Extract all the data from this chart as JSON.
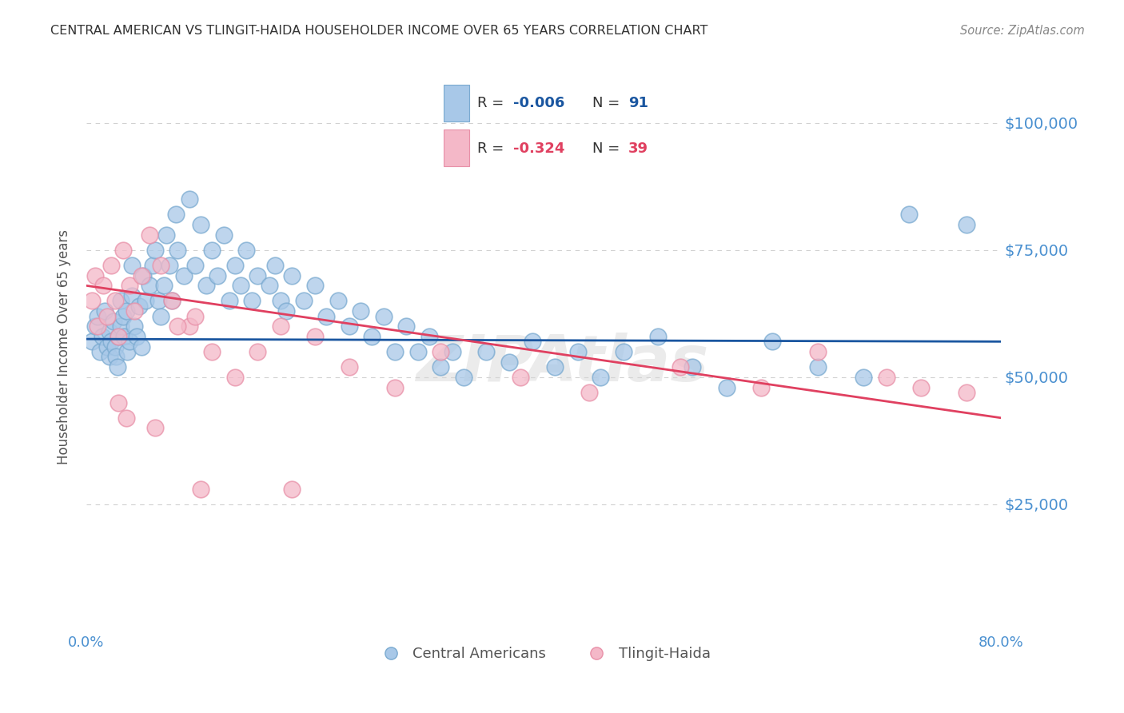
{
  "title": "CENTRAL AMERICAN VS TLINGIT-HAIDA HOUSEHOLDER INCOME OVER 65 YEARS CORRELATION CHART",
  "source": "Source: ZipAtlas.com",
  "ylabel": "Householder Income Over 65 years",
  "ytick_labels": [
    "$25,000",
    "$50,000",
    "$75,000",
    "$100,000"
  ],
  "ytick_values": [
    25000,
    50000,
    75000,
    100000
  ],
  "legend_blue_R": "-0.006",
  "legend_blue_N": "91",
  "legend_pink_R": "-0.324",
  "legend_pink_N": "39",
  "legend_label_blue": "Central Americans",
  "legend_label_pink": "Tlingit-Haida",
  "blue_color": "#a8c8e8",
  "pink_color": "#f4b8c8",
  "blue_edge_color": "#7aaad0",
  "pink_edge_color": "#e890a8",
  "blue_line_color": "#1a56a0",
  "pink_line_color": "#e04060",
  "title_color": "#333333",
  "axis_label_color": "#4a90d0",
  "watermark_color": "#d8d8d8",
  "xlim": [
    0.0,
    0.8
  ],
  "ylim": [
    0,
    112000
  ],
  "blue_scatter_x": [
    0.005,
    0.008,
    0.01,
    0.012,
    0.014,
    0.016,
    0.018,
    0.02,
    0.02,
    0.022,
    0.024,
    0.025,
    0.026,
    0.027,
    0.028,
    0.03,
    0.03,
    0.032,
    0.033,
    0.035,
    0.036,
    0.038,
    0.04,
    0.04,
    0.042,
    0.044,
    0.046,
    0.048,
    0.05,
    0.052,
    0.055,
    0.058,
    0.06,
    0.063,
    0.065,
    0.068,
    0.07,
    0.073,
    0.075,
    0.078,
    0.08,
    0.085,
    0.09,
    0.095,
    0.1,
    0.105,
    0.11,
    0.115,
    0.12,
    0.125,
    0.13,
    0.135,
    0.14,
    0.145,
    0.15,
    0.16,
    0.165,
    0.17,
    0.175,
    0.18,
    0.19,
    0.2,
    0.21,
    0.22,
    0.23,
    0.24,
    0.25,
    0.26,
    0.27,
    0.28,
    0.29,
    0.3,
    0.31,
    0.32,
    0.33,
    0.35,
    0.37,
    0.39,
    0.41,
    0.43,
    0.45,
    0.47,
    0.5,
    0.53,
    0.56,
    0.6,
    0.64,
    0.68,
    0.72,
    0.77
  ],
  "blue_scatter_y": [
    57000,
    60000,
    62000,
    55000,
    58000,
    63000,
    56000,
    59000,
    54000,
    57000,
    61000,
    56000,
    54000,
    52000,
    58000,
    65000,
    60000,
    62000,
    58000,
    63000,
    55000,
    57000,
    72000,
    66000,
    60000,
    58000,
    64000,
    56000,
    70000,
    65000,
    68000,
    72000,
    75000,
    65000,
    62000,
    68000,
    78000,
    72000,
    65000,
    82000,
    75000,
    70000,
    85000,
    72000,
    80000,
    68000,
    75000,
    70000,
    78000,
    65000,
    72000,
    68000,
    75000,
    65000,
    70000,
    68000,
    72000,
    65000,
    63000,
    70000,
    65000,
    68000,
    62000,
    65000,
    60000,
    63000,
    58000,
    62000,
    55000,
    60000,
    55000,
    58000,
    52000,
    55000,
    50000,
    55000,
    53000,
    57000,
    52000,
    55000,
    50000,
    55000,
    58000,
    52000,
    48000,
    57000,
    52000,
    50000,
    82000,
    80000
  ],
  "pink_scatter_x": [
    0.005,
    0.008,
    0.01,
    0.015,
    0.018,
    0.022,
    0.025,
    0.028,
    0.032,
    0.038,
    0.042,
    0.048,
    0.055,
    0.065,
    0.075,
    0.09,
    0.11,
    0.13,
    0.08,
    0.095,
    0.15,
    0.17,
    0.2,
    0.23,
    0.27,
    0.31,
    0.38,
    0.44,
    0.52,
    0.59,
    0.64,
    0.7,
    0.73,
    0.77,
    0.028,
    0.035,
    0.06,
    0.1,
    0.18
  ],
  "pink_scatter_y": [
    65000,
    70000,
    60000,
    68000,
    62000,
    72000,
    65000,
    58000,
    75000,
    68000,
    63000,
    70000,
    78000,
    72000,
    65000,
    60000,
    55000,
    50000,
    60000,
    62000,
    55000,
    60000,
    58000,
    52000,
    48000,
    55000,
    50000,
    47000,
    52000,
    48000,
    55000,
    50000,
    48000,
    47000,
    45000,
    42000,
    40000,
    28000,
    28000
  ],
  "blue_trend_x": [
    0.0,
    0.8
  ],
  "blue_trend_y": [
    57500,
    57000
  ],
  "pink_trend_x": [
    0.0,
    0.8
  ],
  "pink_trend_y": [
    68000,
    42000
  ],
  "grid_color": "#cccccc",
  "bg_color": "#ffffff"
}
